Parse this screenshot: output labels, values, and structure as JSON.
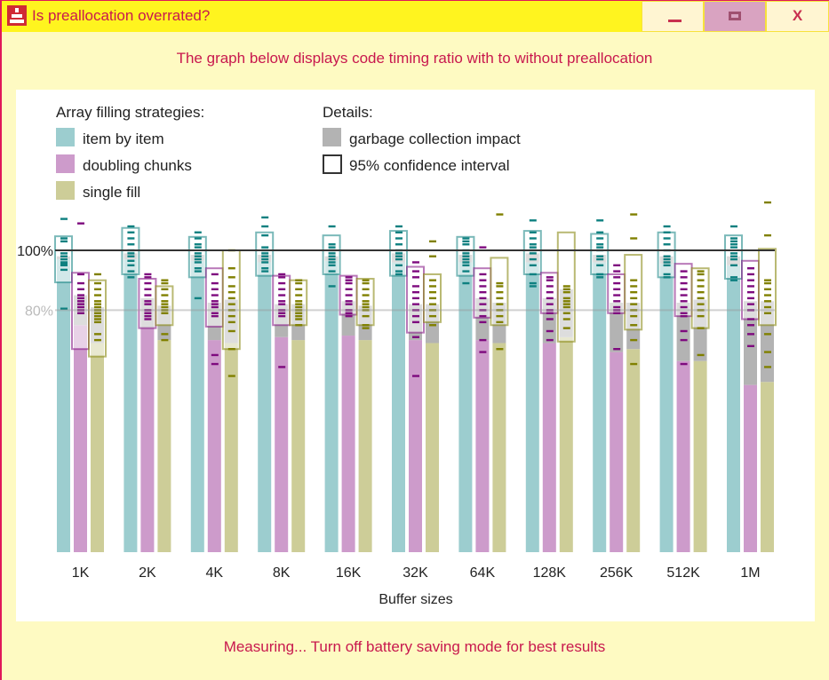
{
  "window": {
    "title": "Is preallocation overrated?",
    "icon": "app-icon",
    "controls": [
      {
        "name": "minimize",
        "glyph": "_"
      },
      {
        "name": "maximize",
        "glyph": "□"
      },
      {
        "name": "close",
        "glyph": "X"
      }
    ]
  },
  "header": {
    "text": "The graph below displays code timing ratio with to without preallocation"
  },
  "footer": {
    "status": "Measuring... Turn off battery saving mode for best results"
  },
  "colors": {
    "title_text": "#c8184e",
    "titlebar_bg": "#fff41f",
    "window_bg": "#fefac2",
    "item_by_item": "#9ccdcf",
    "item_by_item_tick": "#0e8080",
    "doubling_chunks": "#cd9bcb",
    "doubling_chunks_tick": "#7e0a7e",
    "single_fill": "#cdcd98",
    "single_fill_tick": "#808000",
    "gc": "#b3b3b3"
  },
  "chart_data": {
    "type": "bar",
    "title": "",
    "xlabel": "Buffer sizes",
    "ylabel": "",
    "ylim": [
      0,
      115
    ],
    "y_reference_lines": [
      {
        "value": 100,
        "label": "100%",
        "style": "dark"
      },
      {
        "value": 80,
        "label": "80%",
        "style": "light"
      }
    ],
    "legend": {
      "strategies_title": "Array filling strategies:",
      "details_title": "Details:",
      "strategies": [
        "item by item",
        "doubling chunks",
        "single fill"
      ],
      "details": [
        "garbage collection impact",
        "95% confidence interval"
      ],
      "placement": "top-left"
    },
    "categories": [
      "1K",
      "2K",
      "4K",
      "8K",
      "16K",
      "32K",
      "64K",
      "128K",
      "256K",
      "512K",
      "1M"
    ],
    "series": [
      {
        "name": "item by item",
        "key": "item_by_item",
        "values": [
          97,
          97,
          96.5,
          96,
          96.5,
          96,
          96,
          96,
          96,
          95.5,
          95
        ],
        "gc_values": [
          98,
          99,
          98.5,
          98.5,
          98,
          99,
          98.5,
          99,
          98.5,
          98,
          98
        ],
        "ci": [
          [
            89.3,
            104.7
          ],
          [
            92,
            107.5
          ],
          [
            91,
            104.5
          ],
          [
            91.5,
            106
          ],
          [
            92,
            105
          ],
          [
            91.5,
            106.5
          ],
          [
            91.5,
            104.5
          ],
          [
            92,
            106.5
          ],
          [
            92,
            105.5
          ],
          [
            91,
            106
          ],
          [
            90.5,
            105
          ]
        ],
        "samples": [
          [
            110.5,
            104,
            103,
            99,
            98,
            97,
            96,
            95.5,
            95,
            93.5,
            80.5
          ],
          [
            108,
            106,
            104,
            102,
            100,
            99,
            98,
            96.5,
            95,
            93,
            91
          ],
          [
            106,
            104,
            102,
            101,
            99,
            98,
            97,
            96,
            94,
            93,
            84
          ],
          [
            111,
            108,
            105,
            101,
            100,
            99,
            98,
            97,
            96,
            94,
            93
          ],
          [
            108,
            102,
            101,
            100,
            99,
            98,
            97,
            96,
            95,
            93,
            88
          ],
          [
            108,
            106,
            104,
            102,
            100,
            99,
            98,
            97,
            95,
            93,
            92
          ],
          [
            104,
            103,
            102,
            100,
            99,
            98,
            97,
            96,
            95,
            93,
            89
          ],
          [
            110,
            106,
            104,
            102,
            101,
            100,
            99,
            97,
            95,
            92,
            89,
            88
          ],
          [
            110,
            106,
            104,
            102,
            101,
            100,
            98,
            97,
            95,
            92,
            91
          ],
          [
            108,
            106,
            104,
            102,
            100,
            98,
            97,
            96,
            95,
            92,
            91
          ],
          [
            108,
            104,
            103,
            102,
            101,
            99,
            98,
            97,
            95,
            91,
            90
          ]
        ]
      },
      {
        "name": "doubling chunks",
        "key": "doubling_chunks",
        "values": [
          75,
          74,
          70,
          71,
          71.5,
          70,
          70,
          69,
          66,
          63,
          55
        ],
        "gc_values": [
          85,
          84,
          82.5,
          82,
          83,
          82,
          84,
          84,
          82.5,
          82.5,
          83
        ],
        "ci": [
          [
            67,
            92.5
          ],
          [
            74,
            90.5
          ],
          [
            74.5,
            94
          ],
          [
            75,
            91.5
          ],
          [
            78.5,
            91.5
          ],
          [
            72.5,
            94.5
          ],
          [
            77.5,
            94
          ],
          [
            79,
            92.5
          ],
          [
            79,
            92
          ],
          [
            78,
            95.5
          ],
          [
            77,
            96.5
          ]
        ],
        "samples": [
          [
            109,
            92,
            89,
            87,
            85,
            84,
            83,
            82,
            81,
            80,
            79
          ],
          [
            92,
            91,
            89,
            87,
            85,
            83,
            82,
            80,
            79,
            78,
            77
          ],
          [
            92,
            89,
            87,
            85,
            83,
            82,
            81,
            79,
            78,
            65,
            62
          ],
          [
            92,
            91,
            89,
            87,
            85,
            83,
            82,
            80,
            79,
            78,
            61
          ],
          [
            91,
            90,
            89,
            87,
            85,
            83,
            82,
            80,
            79,
            78
          ],
          [
            96,
            93,
            91,
            88,
            86,
            84,
            82,
            80,
            78,
            76,
            71,
            58
          ],
          [
            101,
            92,
            90,
            88,
            86,
            84,
            82,
            80,
            78,
            76,
            70,
            66
          ],
          [
            91,
            90,
            88,
            86,
            84,
            82,
            80,
            79,
            77,
            73,
            70
          ],
          [
            95,
            93,
            91,
            89,
            87,
            85,
            83,
            81,
            80,
            79,
            67
          ],
          [
            93,
            91,
            89,
            87,
            85,
            83,
            81,
            79,
            78,
            73,
            70,
            62
          ],
          [
            94,
            92,
            90,
            88,
            86,
            84,
            82,
            80,
            77,
            75,
            72,
            68
          ]
        ]
      },
      {
        "name": "single fill",
        "key": "single_fill",
        "values": [
          69,
          70,
          69,
          70,
          70,
          69,
          69,
          71,
          67,
          63,
          56
        ],
        "gc_values": [
          81,
          81.5,
          83.5,
          82,
          81.5,
          82,
          82.5,
          87,
          82.5,
          83.5,
          83
        ],
        "ci": [
          [
            64.5,
            90
          ],
          [
            75,
            88
          ],
          [
            67,
            100
          ],
          [
            75,
            90
          ],
          [
            75,
            90.5
          ],
          [
            76,
            92
          ],
          [
            75,
            97.5
          ],
          [
            69.5,
            106
          ],
          [
            73.5,
            98.5
          ],
          [
            74,
            94
          ],
          [
            75,
            100.5
          ]
        ],
        "samples": [
          [
            92,
            89,
            87,
            85,
            83,
            82,
            81,
            80,
            79,
            78,
            77,
            76,
            72,
            70
          ],
          [
            90,
            89,
            87,
            85,
            83,
            82,
            81,
            80,
            79,
            72,
            70
          ],
          [
            100,
            94,
            91,
            88,
            86,
            84,
            82,
            80,
            78,
            76,
            73,
            67,
            58
          ],
          [
            90,
            89,
            87,
            85,
            83,
            82,
            81,
            80,
            79,
            78,
            77,
            75
          ],
          [
            90,
            89,
            87,
            85,
            83,
            82,
            81,
            80,
            78,
            75,
            74
          ],
          [
            103,
            98,
            90,
            88,
            86,
            84,
            82,
            80,
            78,
            75
          ],
          [
            112,
            89,
            88,
            86,
            84,
            82,
            80,
            78,
            76,
            67
          ],
          [
            88,
            87,
            86,
            84,
            83,
            82,
            81,
            79,
            77,
            74
          ],
          [
            112,
            104,
            90,
            88,
            86,
            84,
            82,
            80,
            78,
            75,
            70,
            62
          ],
          [
            93,
            92,
            90,
            88,
            86,
            84,
            82,
            80,
            78,
            74,
            65
          ],
          [
            116,
            105,
            90,
            89,
            87,
            85,
            83,
            81,
            79,
            72,
            66,
            61
          ]
        ]
      }
    ]
  }
}
